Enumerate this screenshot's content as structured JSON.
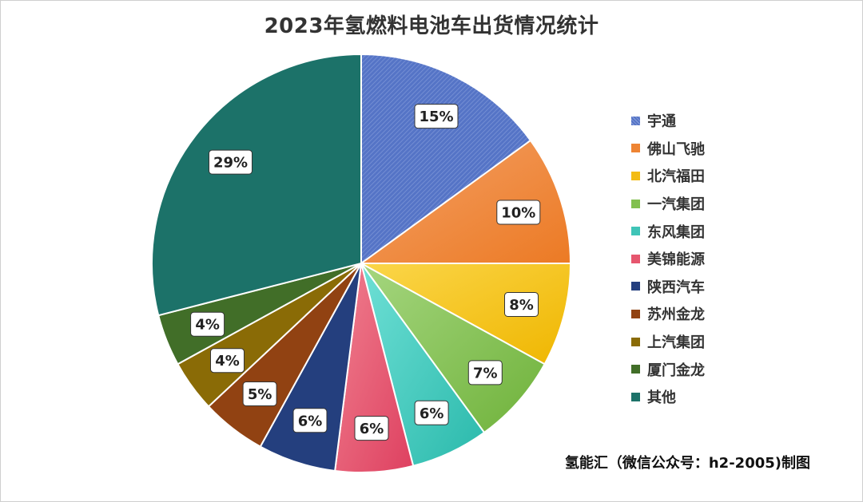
{
  "chart_data": {
    "type": "pie",
    "title": "2023年氢燃料电池车出货情况统计",
    "categories": [
      "宇通",
      "佛山飞驰",
      "北汽福田",
      "一汽集团",
      "东风集团",
      "美锦能源",
      "陕西汽车",
      "苏州金龙",
      "上汽集团",
      "厦门金龙",
      "其他"
    ],
    "values": [
      15,
      10,
      8,
      7,
      6,
      6,
      6,
      5,
      4,
      4,
      29
    ],
    "labels": [
      "15%",
      "10%",
      "8%",
      "7%",
      "6%",
      "6%",
      "6%",
      "5%",
      "4%",
      "4%",
      "29%"
    ],
    "colors": [
      "#5574c6",
      "#ee8433",
      "#f3bc15",
      "#82c04f",
      "#3fc4b7",
      "#e6566e",
      "#243f7e",
      "#914212",
      "#8a6b06",
      "#416e28",
      "#1c7269"
    ],
    "legend_position": "right"
  },
  "credit": "氢能汇（微信公众号：h2-2005)制图"
}
